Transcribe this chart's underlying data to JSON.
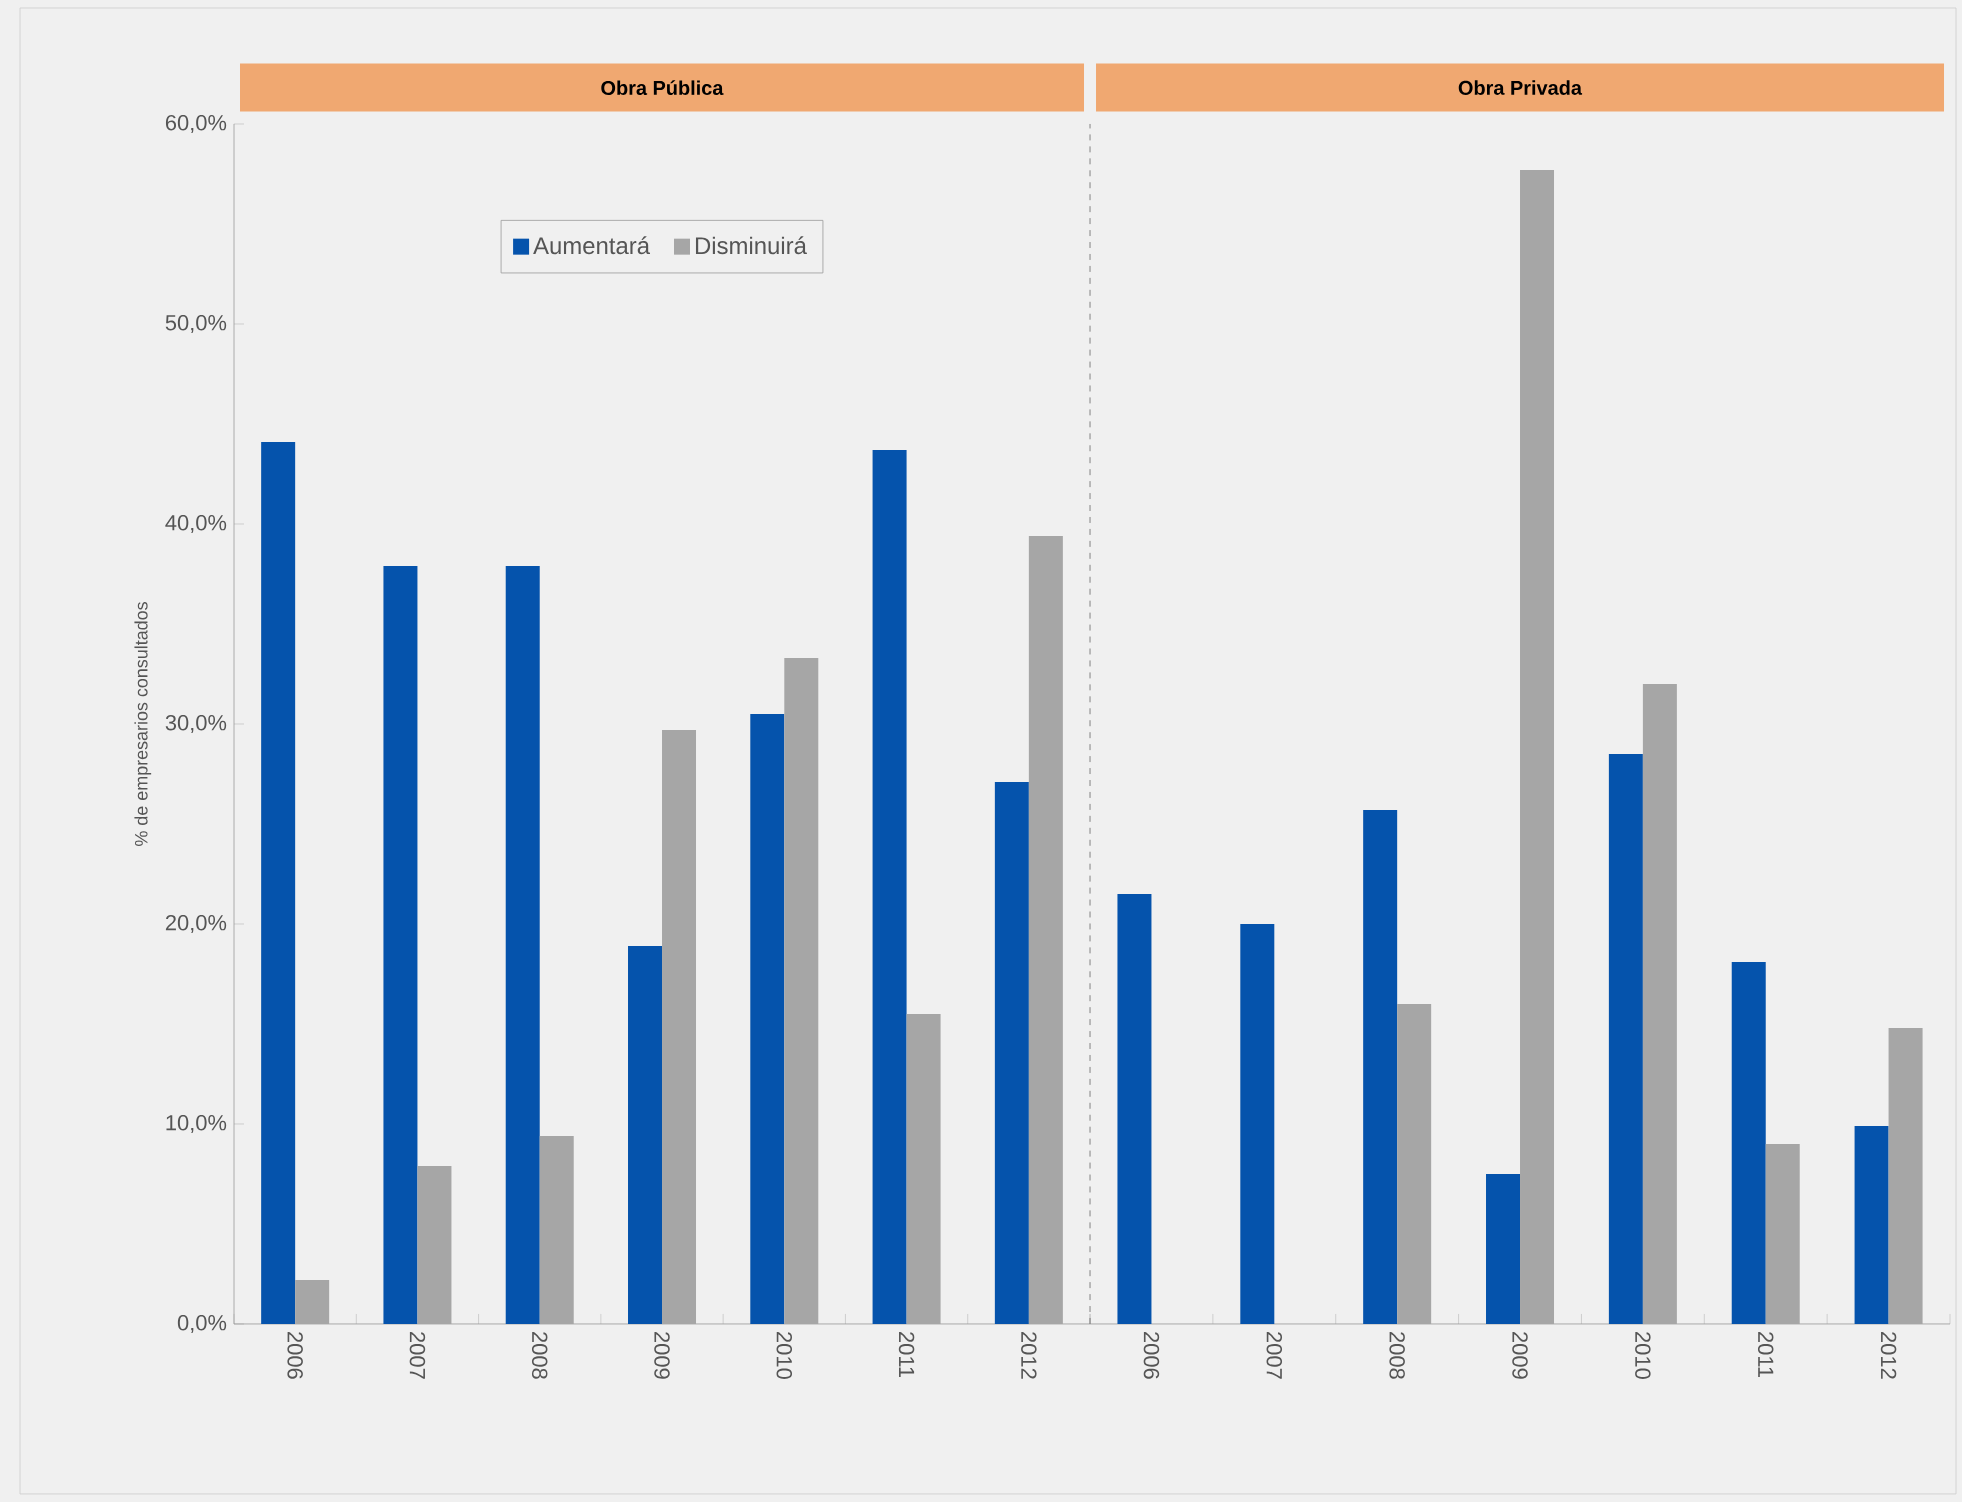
{
  "chart_data": [
    {
      "type": "bar",
      "title": "**Obra Pública**",
      "ylabel": "% de empresarios consultados",
      "categories": [
        "2006",
        "2007",
        "2008",
        "2009",
        "2010",
        "2011",
        "2012"
      ],
      "series": [
        {
          "name": "Aumentará",
          "color": "#0553ac",
          "values": [
            44.1,
            37.9,
            37.9,
            18.9,
            30.5,
            43.7,
            27.1
          ]
        },
        {
          "name": "Disminuirá",
          "color": "#a6a6a6",
          "values": [
            2.2,
            7.9,
            9.4,
            29.7,
            33.3,
            15.5,
            39.4
          ]
        }
      ],
      "ylim": [
        0,
        60
      ],
      "yticks": [
        {
          "value": 0,
          "label": "0,0%"
        },
        {
          "value": 10,
          "label": "10,0%"
        },
        {
          "value": 20,
          "label": "20,0%"
        },
        {
          "value": 30,
          "label": "30,0%"
        },
        {
          "value": 40,
          "label": "40,0%"
        },
        {
          "value": 50,
          "label": "50,0%"
        },
        {
          "value": 60,
          "label": "60,0%"
        }
      ],
      "grid": false,
      "legend": "top"
    },
    {
      "type": "bar",
      "title": "**Obra Privada**",
      "categories": [
        "2006",
        "2007",
        "2008",
        "2009",
        "2010",
        "2011",
        "2012"
      ],
      "series": [
        {
          "color": "#0553ac",
          "values": [
            21.5,
            20.0,
            25.7,
            7.5,
            28.5,
            18.1,
            9.9
          ]
        },
        {
          "color": "#a6a6a6",
          "values": [
            null,
            null,
            16.0,
            57.7,
            32.0,
            9.0,
            14.8
          ]
        }
      ],
      "ylim": [
        0,
        60
      ],
      "grid": false,
      "legend": false,
      "tick_labels": "x"
    }
  ]
}
